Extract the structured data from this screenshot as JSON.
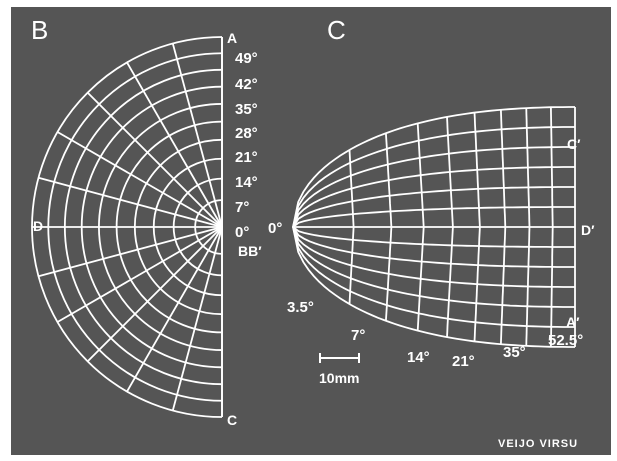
{
  "panels": {
    "left": {
      "label": "B",
      "points": {
        "top": "A",
        "bottom": "C",
        "left": "D",
        "center": "BB′"
      },
      "angle_ticks": [
        "49°",
        "42°",
        "35°",
        "28°",
        "21°",
        "14°",
        "7°",
        "0°"
      ]
    },
    "right": {
      "label": "C",
      "points": {
        "upper_right": "C′",
        "right": "D′",
        "lower_right": "A′",
        "origin": "0°"
      },
      "angle_ticks": [
        "3.5°",
        "7°",
        "14°",
        "21°",
        "35°",
        "52.5°"
      ]
    }
  },
  "scale_bar": {
    "label": "10mm"
  },
  "credit": "VEIJO VIRSU",
  "colors": {
    "background": "#555555",
    "lines": "#ffffff",
    "page": "#ffffff"
  }
}
